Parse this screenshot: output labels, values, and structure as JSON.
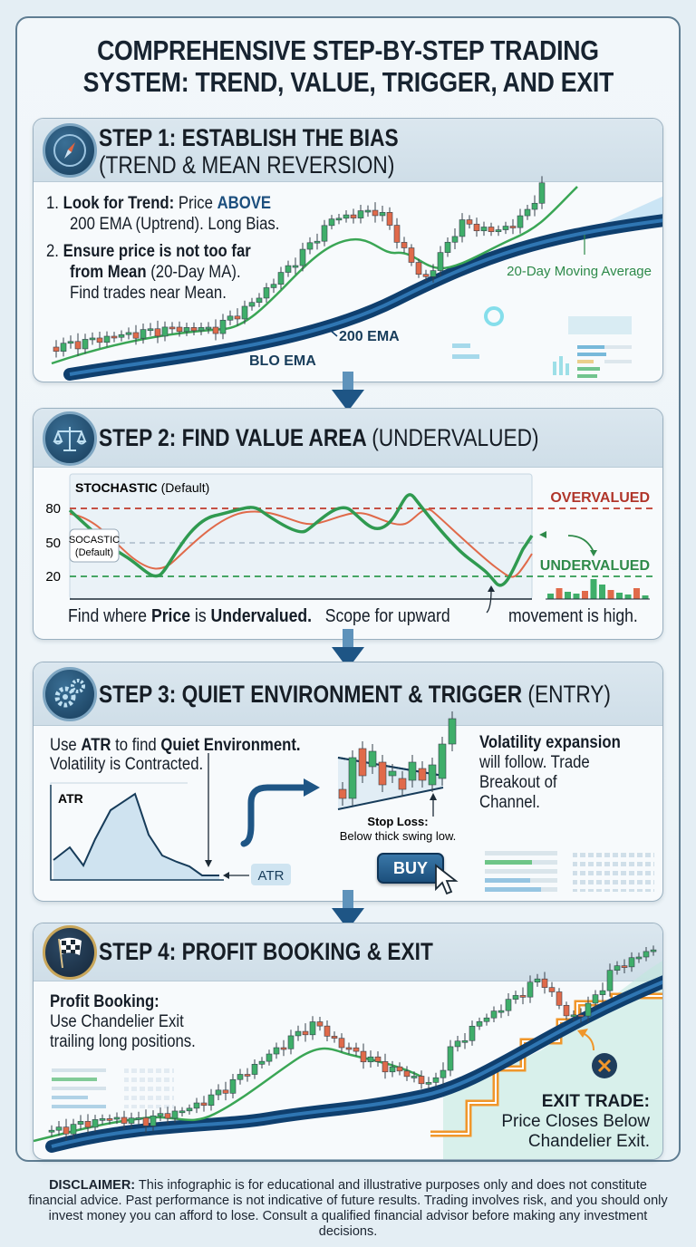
{
  "title": {
    "line1": "COMPREHENSIVE STEP-BY-STEP TRADING",
    "line2": "SYSTEM: TREND, VALUE, TRIGGER, AND EXIT"
  },
  "colors": {
    "navy": "#173c5a",
    "ema_blue": "#1a5f9a",
    "ma_green": "#3aa655",
    "bull": "#3fae6a",
    "bear": "#e06a4a",
    "over_red": "#c0392b",
    "under_green": "#2f9a50",
    "exit_orange": "#f0962a"
  },
  "step1": {
    "icon": "compass-icon",
    "title": "STEP 1: ESTABLISH THE BIAS",
    "subtitle": "(TREND & MEAN REVERSION)",
    "point1_num": "1.",
    "point1_bold": "Look for Trend:",
    "point1_text": "Price",
    "point1_hl": "ABOVE",
    "point1_line2": "200 EMA (Uptrend). Long Bias.",
    "point2_num": "2.",
    "point2_bold1": "Ensure price is not too far",
    "point2_bold2": "from Mean",
    "point2_text": "(20-Day MA).",
    "point2_line3": "Find trades near Mean.",
    "label_ma": "20-Day Moving Average",
    "label_ema": "200 EMA",
    "label_ema2": "BLO EMA"
  },
  "step2": {
    "icon": "balance-scale-icon",
    "title_bold": "STEP 2: FIND VALUE AREA",
    "title_normal": "(UNDERVALUED)",
    "chart_title_bold": "STOCHASTIC",
    "chart_title_normal": "(Default)",
    "tooltip_line1": "SOCASTIC",
    "tooltip_line2": "(Default)",
    "levels": [
      "80",
      "50",
      "20"
    ],
    "overvalued": "OVERVALUED",
    "undervalued": "UNDERVALUED",
    "caption": {
      "t1": "Find where",
      "b1": "Price",
      "t2": "is",
      "b2": "Undervalued.",
      "t3": "Scope for upward",
      "t4": "movement is high."
    }
  },
  "step3": {
    "icon": "gears-icon",
    "title_bold": "STEP 3: QUIET ENVIRONMENT & TRIGGER",
    "title_normal": "(ENTRY)",
    "line1": {
      "t1": "Use",
      "b1": "ATR",
      "t2": "to find",
      "b2": "Quiet Environment."
    },
    "line2": "Volatility is Contracted.",
    "atr_chart_label": "ATR",
    "atr_tag": "ATR",
    "stop_loss_bold": "Stop Loss:",
    "stop_loss_text": "Below thick swing low.",
    "buy_button": "BUY",
    "right_bold": "Volatility expansion",
    "right_l2": "will follow. Trade",
    "right_l3": "Breakout of",
    "right_l4": "Channel."
  },
  "step4": {
    "icon": "checkered-flag-icon",
    "title": "STEP 4: PROFIT BOOKING & EXIT",
    "pb_bold": "Profit Booking:",
    "pb_l2": "Use Chandelier Exit",
    "pb_l3": "trailing long positions.",
    "exit_bold": "EXIT TRADE:",
    "exit_l2": "Price Closes Below",
    "exit_l3": "Chandelier Exit."
  },
  "disclaimer": {
    "label": "DISCLAIMER:",
    "text": "This infographic is for educational and illustrative purposes only and does not constitute financial advice. Past performance is not indicative of future results. Trading involves risk, and you should only invest money you can afford to lose. Consult a qualified financial advisor before making any investment decisions."
  }
}
